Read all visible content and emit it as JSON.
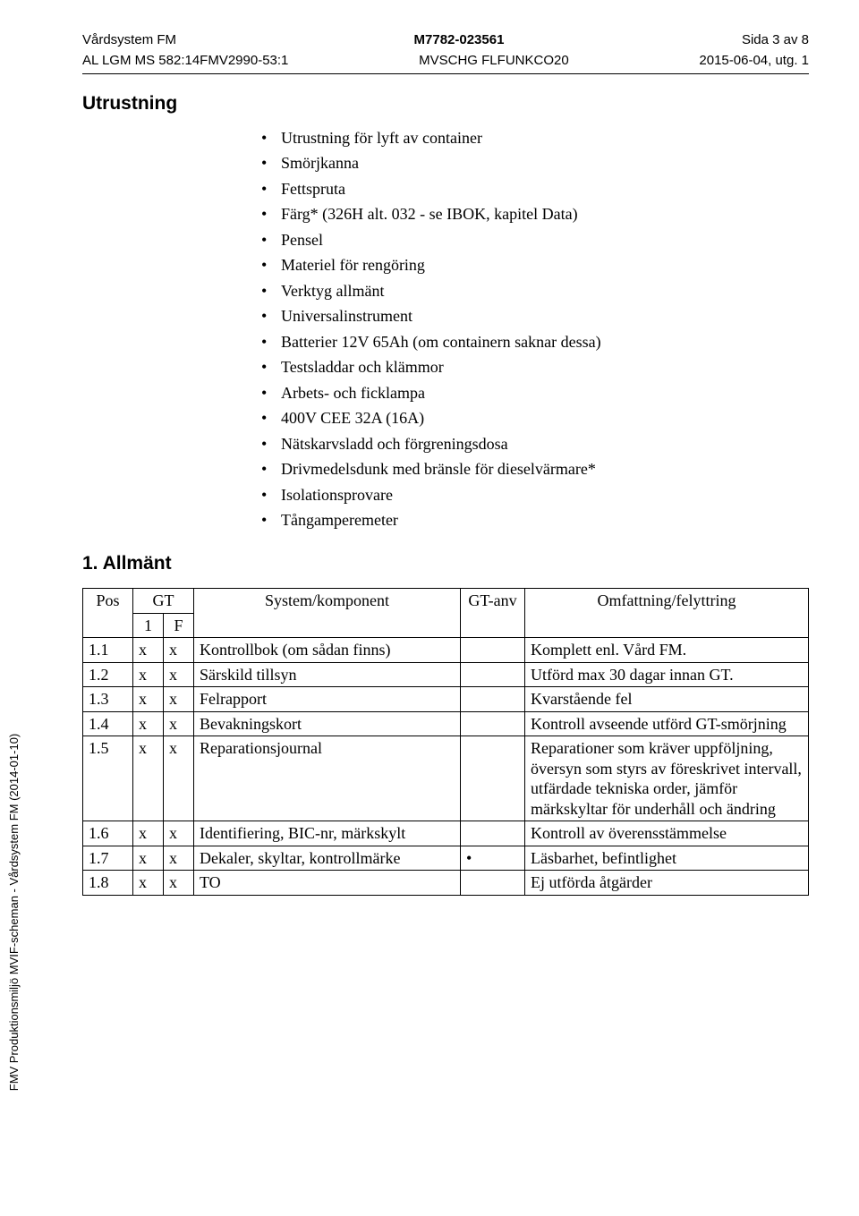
{
  "header": {
    "left1": "Vårdsystem FM",
    "left2": "AL LGM MS 582:14FMV2990-53:1",
    "center1": "M7782-023561",
    "center2": "MVSCHG FLFUNKCO20",
    "right1": "Sida 3 av 8",
    "right2": "2015-06-04, utg. 1"
  },
  "sideText": "FMV Produktionsmiljö MVIF-scheman - Vårdsystem FM (2014-01-10)",
  "sections": {
    "equipTitle": "Utrustning",
    "allmantTitle": "1. Allmänt"
  },
  "equip": [
    "Utrustning för lyft av container",
    "Smörjkanna",
    "Fettspruta",
    "Färg* (326H alt. 032 - se IBOK, kapitel Data)",
    "Pensel",
    "Materiel för rengöring",
    "Verktyg allmänt",
    "Universalinstrument",
    "Batterier 12V 65Ah (om containern saknar dessa)",
    "Testsladdar och klämmor",
    "Arbets- och ficklampa",
    "400V CEE 32A (16A)",
    "Nätskarvsladd och förgreningsdosa",
    "Drivmedelsdunk med bränsle för dieselvärmare*",
    "Isolationsprovare",
    "Tångamperemeter"
  ],
  "table": {
    "head": {
      "pos": "Pos",
      "gt": "GT",
      "gt1": "1",
      "gtF": "F",
      "sys": "System/komponent",
      "anv": "GT-anv",
      "omf": "Omfattning/felyttring"
    },
    "rows": [
      {
        "pos": "1.1",
        "g1": "x",
        "gF": "x",
        "sys": "Kontrollbok (om sådan finns)",
        "anv": "",
        "omf": "Komplett enl. Vård FM."
      },
      {
        "pos": "1.2",
        "g1": "x",
        "gF": "x",
        "sys": "Särskild tillsyn",
        "anv": "",
        "omf": "Utförd max 30 dagar innan GT."
      },
      {
        "pos": "1.3",
        "g1": "x",
        "gF": "x",
        "sys": "Felrapport",
        "anv": "",
        "omf": "Kvarstående fel"
      },
      {
        "pos": "1.4",
        "g1": "x",
        "gF": "x",
        "sys": "Bevakningskort",
        "anv": "",
        "omf": "Kontroll avseende utförd GT-smörjning"
      },
      {
        "pos": "1.5",
        "g1": "x",
        "gF": "x",
        "sys": "Reparationsjournal",
        "anv": "",
        "omf": "Reparationer som kräver uppföljning, översyn som styrs av föreskrivet intervall, utfärdade tekniska order, jämför märkskyltar för underhåll och ändring"
      },
      {
        "pos": "1.6",
        "g1": "x",
        "gF": "x",
        "sys": "Identifiering, BIC-nr, märkskylt",
        "anv": "",
        "omf": "Kontroll av överensstämmelse"
      },
      {
        "pos": "1.7",
        "g1": "x",
        "gF": "x",
        "sys": "Dekaler, skyltar, kontrollmärke",
        "anv": "•",
        "omf": "Läsbarhet, befintlighet"
      },
      {
        "pos": "1.8",
        "g1": "x",
        "gF": "x",
        "sys": "TO",
        "anv": "",
        "omf": "Ej utförda åtgärder"
      }
    ]
  }
}
